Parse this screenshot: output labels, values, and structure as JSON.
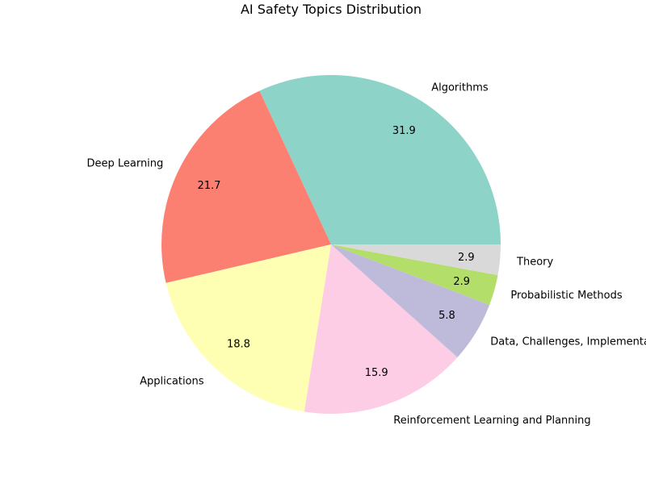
{
  "chart_data": {
    "type": "pie",
    "title": "AI Safety Topics Distribution",
    "start_angle_deg": 0,
    "direction": "counterclockwise",
    "slices": [
      {
        "label": "Algorithms",
        "value": 31.9,
        "color": "#8dd3c7"
      },
      {
        "label": "Deep Learning",
        "value": 21.7,
        "color": "#fb8072"
      },
      {
        "label": "Applications",
        "value": 18.8,
        "color": "#ffffb3"
      },
      {
        "label": "Reinforcement Learning and Planning",
        "value": 15.9,
        "color": "#fccde5"
      },
      {
        "label": "Data, Challenges, Implementations, and Software",
        "value": 5.8,
        "color": "#bebada"
      },
      {
        "label": "Probabilistic Methods",
        "value": 2.9,
        "color": "#b3de69"
      },
      {
        "label": "Theory",
        "value": 2.9,
        "color": "#d9d9d9"
      }
    ]
  }
}
